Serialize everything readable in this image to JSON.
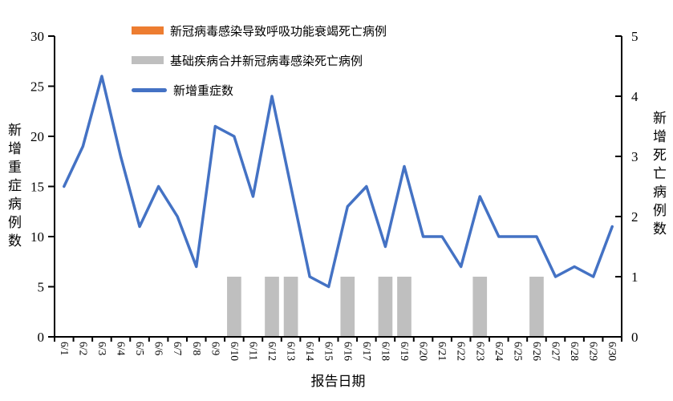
{
  "chart_data": {
    "type": "combo",
    "categories": [
      "6/1",
      "6/2",
      "6/3",
      "6/4",
      "6/5",
      "6/6",
      "6/7",
      "6/8",
      "6/9",
      "6/10",
      "6/11",
      "6/12",
      "6/13",
      "6/14",
      "6/15",
      "6/16",
      "6/17",
      "6/18",
      "6/19",
      "6/20",
      "6/21",
      "6/22",
      "6/23",
      "6/24",
      "6/25",
      "6/26",
      "6/27",
      "6/28",
      "6/29",
      "6/30"
    ],
    "series": [
      {
        "name": "新冠病毒感染导致呼吸功能衰竭死亡病例",
        "type": "bar",
        "axis": "right",
        "color": "#ED7D31",
        "values": [
          0,
          0,
          0,
          0,
          0,
          0,
          0,
          0,
          0,
          0,
          0,
          0,
          0,
          0,
          0,
          0,
          0,
          0,
          0,
          0,
          0,
          0,
          0,
          0,
          0,
          0,
          0,
          0,
          0,
          0
        ]
      },
      {
        "name": "基础疾病合并新冠病毒感染死亡病例",
        "type": "bar",
        "axis": "right",
        "color": "#BFBFBF",
        "values": [
          0,
          0,
          0,
          0,
          0,
          0,
          0,
          0,
          0,
          1,
          0,
          1,
          1,
          0,
          0,
          1,
          0,
          1,
          1,
          0,
          0,
          0,
          1,
          0,
          0,
          1,
          0,
          0,
          0,
          0
        ]
      },
      {
        "name": "新增重症数",
        "type": "line",
        "axis": "left",
        "color": "#4472C4",
        "values": [
          15,
          19,
          26,
          18,
          11,
          15,
          12,
          7,
          21,
          20,
          14,
          24,
          15,
          6,
          5,
          13,
          15,
          9,
          17,
          10,
          10,
          7,
          14,
          10,
          10,
          10,
          6,
          7,
          6,
          11
        ]
      }
    ],
    "left_axis": {
      "title": "新增重症病例数",
      "min": 0,
      "max": 30,
      "step": 5
    },
    "right_axis": {
      "title": "新增死亡病例数",
      "min": 0,
      "max": 5,
      "step": 1
    },
    "xlabel": "报告日期",
    "grid": false,
    "legend_position": "top-center",
    "axis_color": "#000000"
  }
}
